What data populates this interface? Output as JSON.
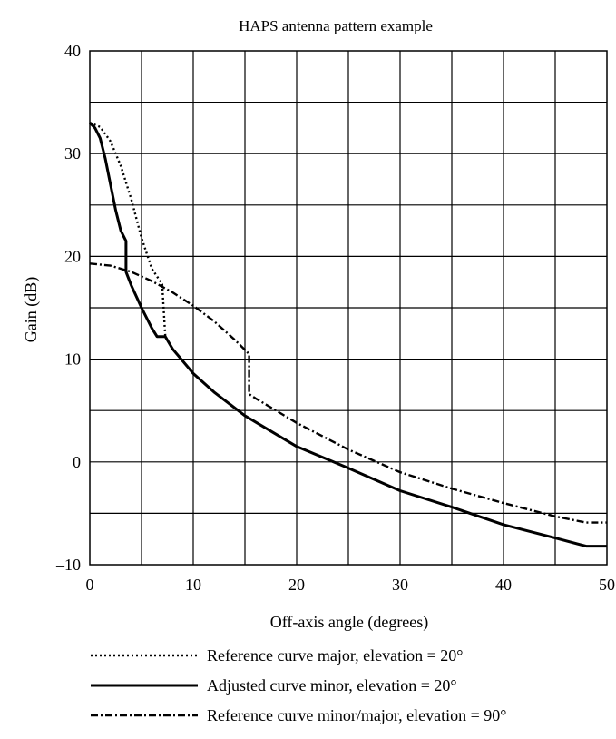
{
  "chart_data": {
    "type": "line",
    "title": "HAPS antenna pattern example",
    "xlabel": "Off-axis angle (degrees)",
    "ylabel": "Gain (dB)",
    "xlim": [
      0,
      50
    ],
    "ylim": [
      -10,
      40
    ],
    "x_ticks": [
      0,
      10,
      20,
      30,
      40,
      50
    ],
    "x_tick_labels": [
      "0",
      "10",
      "20",
      "30",
      "40",
      "50"
    ],
    "y_ticks": [
      -10,
      0,
      10,
      20,
      30,
      40
    ],
    "y_tick_labels": [
      "–10",
      "0",
      "10",
      "20",
      "30",
      "40"
    ],
    "grid": true,
    "legend_position": "bottom",
    "series": [
      {
        "name": "Reference curve major, elevation = 20°",
        "style": "dotted",
        "color": "#000000",
        "points": [
          [
            0,
            33
          ],
          [
            1,
            32.6
          ],
          [
            2,
            31.2
          ],
          [
            3,
            28.8
          ],
          [
            4,
            25.6
          ],
          [
            5,
            21.8
          ],
          [
            6,
            18.8
          ],
          [
            7,
            17.3
          ],
          [
            7.3,
            12.2
          ]
        ]
      },
      {
        "name": "Adjusted curve minor, elevation = 20°",
        "style": "solid",
        "color": "#000000",
        "points": [
          [
            0,
            33
          ],
          [
            0.5,
            32.5
          ],
          [
            1,
            31.5
          ],
          [
            1.5,
            29.5
          ],
          [
            2,
            27
          ],
          [
            2.5,
            24.5
          ],
          [
            3,
            22.5
          ],
          [
            3.5,
            21.5
          ],
          [
            3.5,
            18.5
          ],
          [
            4,
            17.2
          ],
          [
            5,
            15
          ],
          [
            6,
            13
          ],
          [
            6.5,
            12.2
          ],
          [
            7.3,
            12.2
          ],
          [
            8,
            11
          ],
          [
            10,
            8.6
          ],
          [
            12,
            6.8
          ],
          [
            15,
            4.5
          ],
          [
            20,
            1.5
          ],
          [
            25,
            -0.6
          ],
          [
            30,
            -2.8
          ],
          [
            35,
            -4.4
          ],
          [
            40,
            -6.1
          ],
          [
            45,
            -7.4
          ],
          [
            48,
            -8.2
          ],
          [
            50,
            -8.2
          ]
        ]
      },
      {
        "name": "Reference curve minor/major, elevation = 90°",
        "style": "dash-dot",
        "color": "#000000",
        "points": [
          [
            0,
            19.3
          ],
          [
            2,
            19.1
          ],
          [
            4,
            18.5
          ],
          [
            6,
            17.6
          ],
          [
            8,
            16.5
          ],
          [
            10,
            15.2
          ],
          [
            12,
            13.7
          ],
          [
            14,
            11.9
          ],
          [
            15.4,
            10.5
          ],
          [
            15.4,
            6.6
          ],
          [
            16,
            6.2
          ],
          [
            18,
            5
          ],
          [
            20,
            3.8
          ],
          [
            25,
            1.2
          ],
          [
            30,
            -1
          ],
          [
            35,
            -2.6
          ],
          [
            40,
            -4
          ],
          [
            45,
            -5.3
          ],
          [
            48,
            -5.9
          ],
          [
            50,
            -5.9
          ]
        ]
      }
    ]
  }
}
